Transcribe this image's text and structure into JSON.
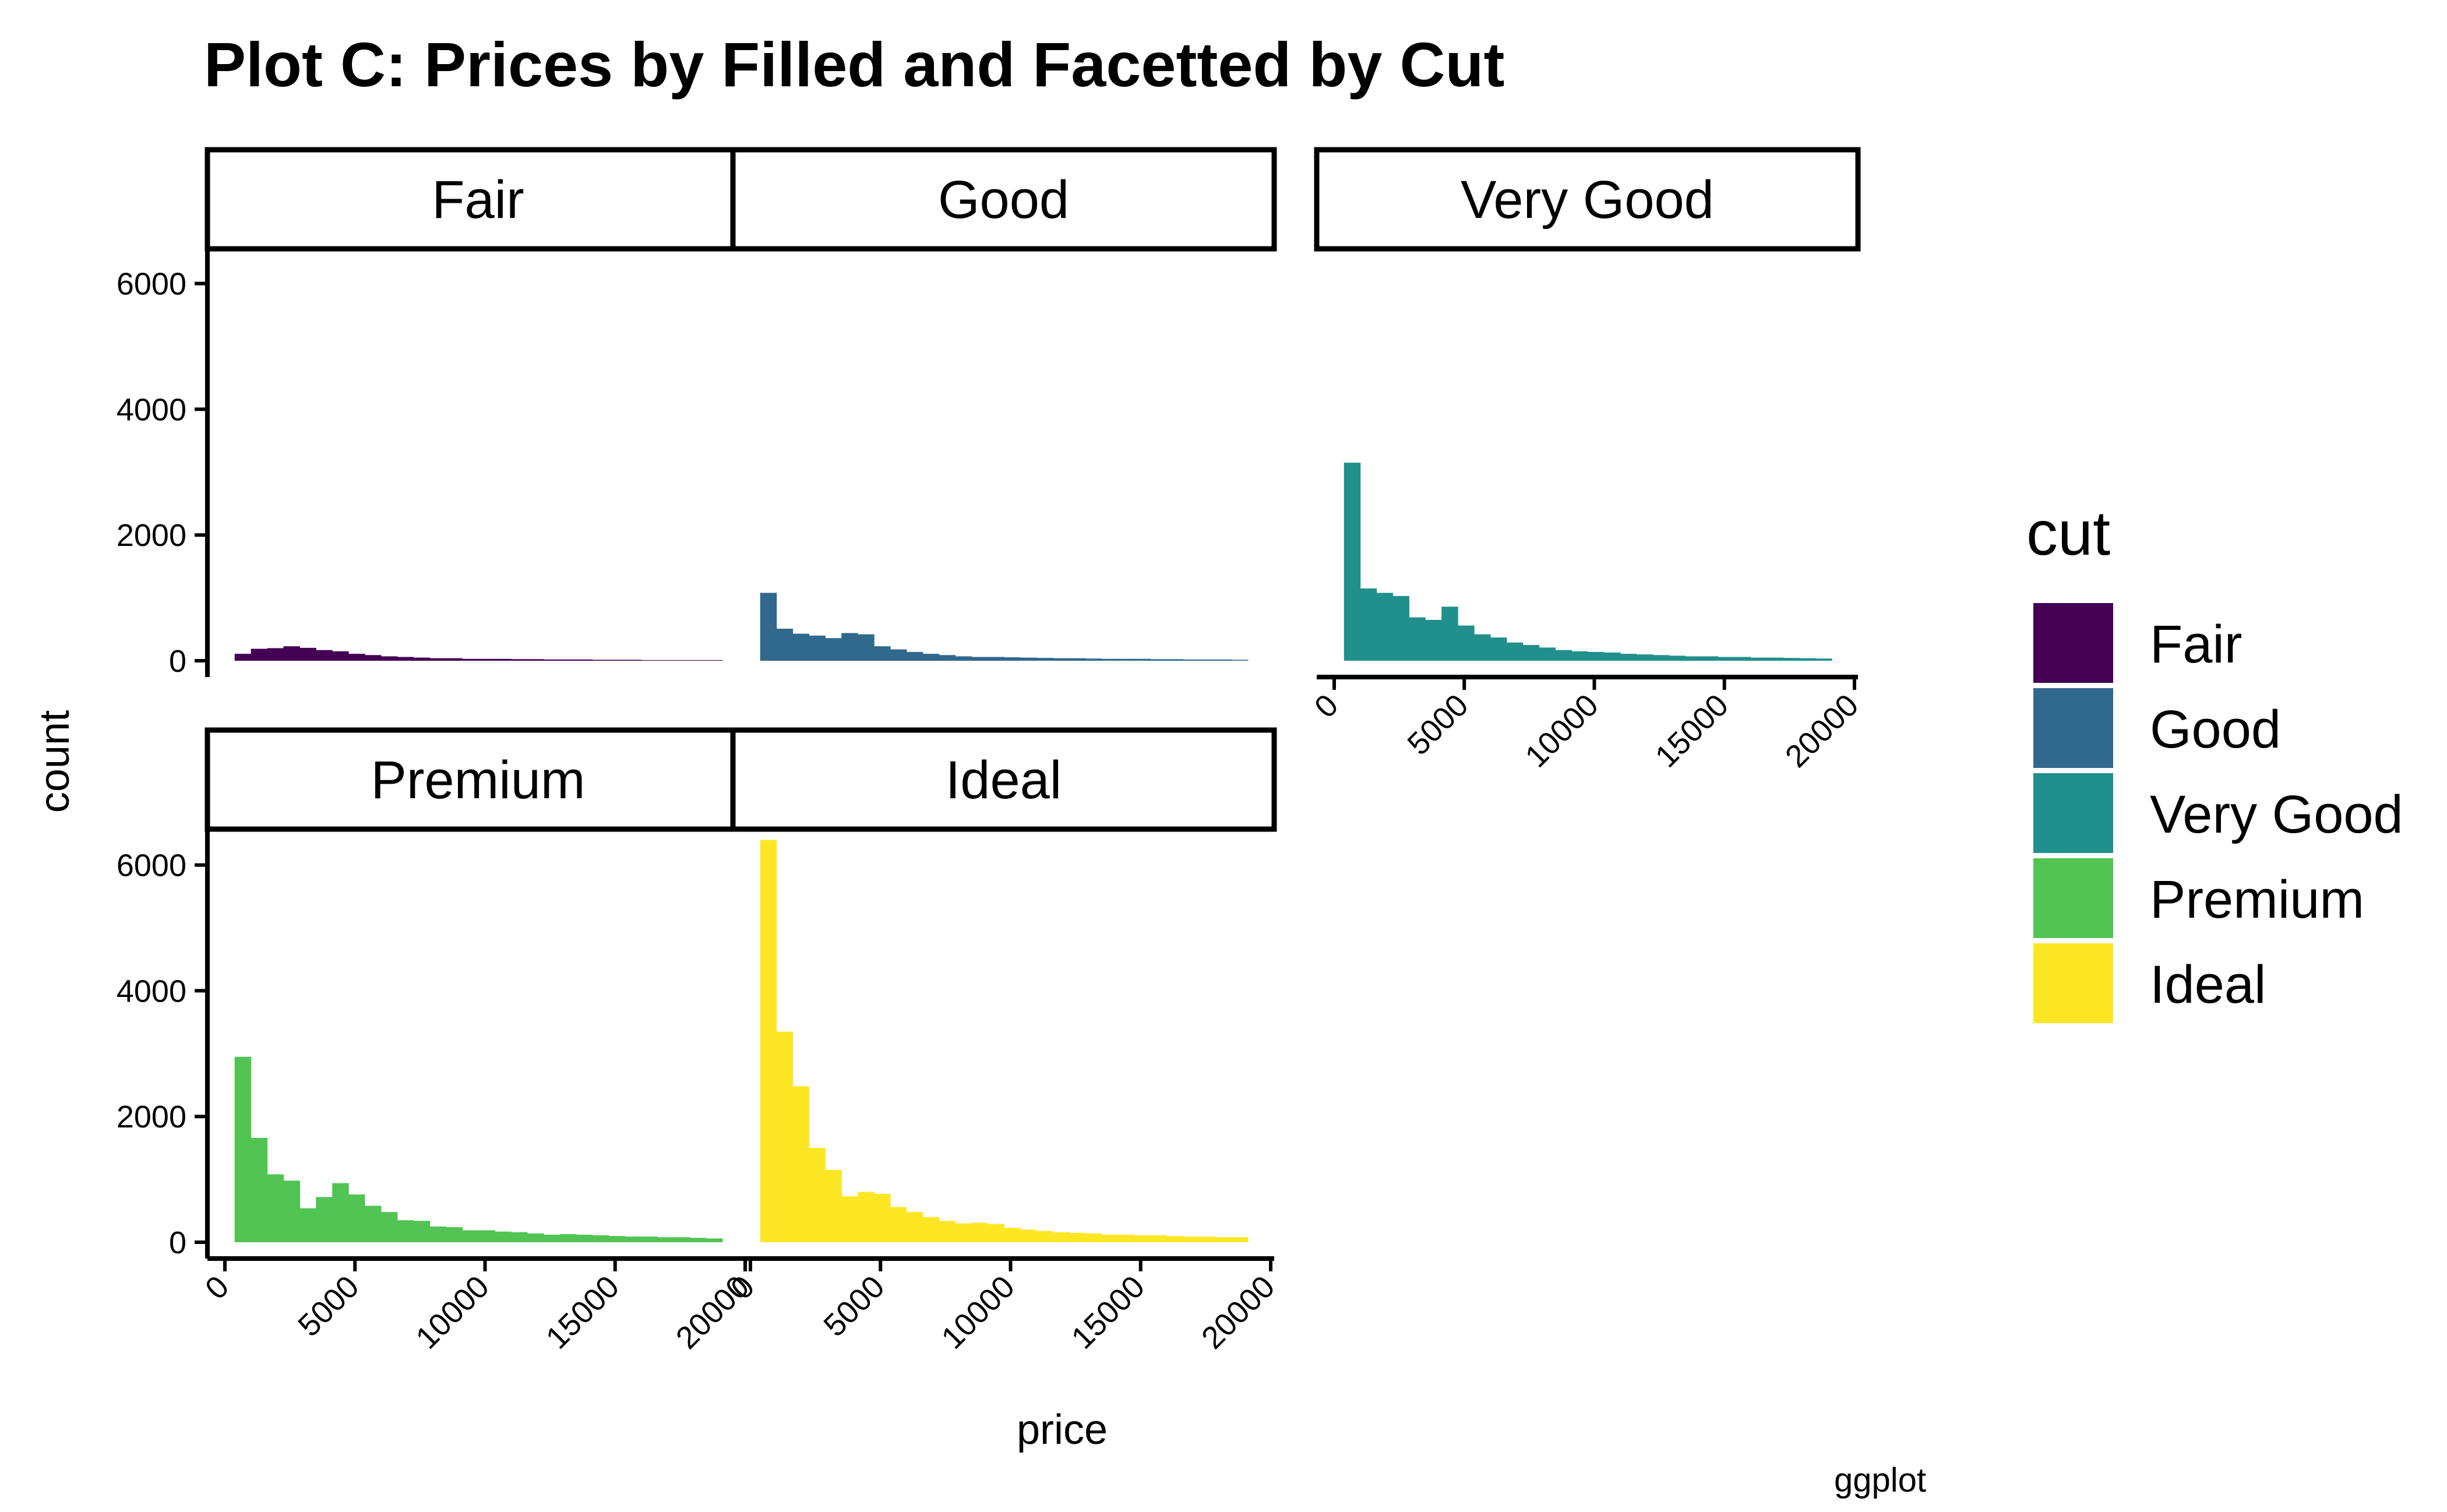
{
  "chart_data": {
    "type": "bar",
    "title": "Plot C: Prices by Filled and Facetted by Cut",
    "xlabel": "price",
    "ylabel": "count",
    "caption": "ggplot",
    "legend_title": "cut",
    "legend_position": "right",
    "xlim": [
      0,
      20000
    ],
    "ylim": [
      0,
      6500
    ],
    "x_ticks": [
      0,
      5000,
      10000,
      15000,
      20000
    ],
    "y_ticks": [
      0,
      2000,
      4000,
      6000
    ],
    "x_tick_labels": [
      "0",
      "5000",
      "10000",
      "15000",
      "20000"
    ],
    "y_tick_labels": [
      "0",
      "2000",
      "4000",
      "6000"
    ],
    "grid": false,
    "bin_starts": [
      375,
      1000,
      1625,
      2250,
      2875,
      3500,
      4125,
      4750,
      5375,
      6000,
      6625,
      7250,
      7875,
      8500,
      9125,
      9750,
      10375,
      11000,
      11625,
      12250,
      12875,
      13500,
      14125,
      14750,
      15375,
      16000,
      16625,
      17250,
      17875,
      18500
    ],
    "bin_width": 625,
    "series": [
      {
        "name": "Fair",
        "color": "#440154",
        "values": [
          110,
          190,
          200,
          230,
          205,
          170,
          150,
          110,
          90,
          70,
          60,
          50,
          40,
          40,
          30,
          30,
          30,
          25,
          25,
          20,
          20,
          20,
          15,
          15,
          15,
          10,
          10,
          10,
          10,
          10
        ]
      },
      {
        "name": "Good",
        "color": "#31688E",
        "values": [
          1080,
          510,
          430,
          400,
          360,
          440,
          420,
          230,
          180,
          140,
          110,
          90,
          70,
          60,
          60,
          55,
          50,
          45,
          40,
          40,
          35,
          30,
          30,
          30,
          25,
          25,
          20,
          20,
          20,
          15
        ]
      },
      {
        "name": "Very Good",
        "color": "#21908C",
        "values": [
          3150,
          1150,
          1080,
          1030,
          690,
          650,
          860,
          560,
          420,
          370,
          290,
          250,
          210,
          170,
          150,
          140,
          130,
          110,
          100,
          90,
          80,
          70,
          70,
          60,
          60,
          50,
          50,
          45,
          40,
          35
        ]
      },
      {
        "name": "Premium",
        "color": "#51C453",
        "values": [
          2950,
          1660,
          1080,
          980,
          540,
          720,
          940,
          760,
          580,
          480,
          350,
          340,
          250,
          240,
          190,
          190,
          170,
          160,
          140,
          120,
          130,
          120,
          110,
          100,
          90,
          90,
          80,
          80,
          70,
          60
        ]
      },
      {
        "name": "Ideal",
        "color": "#FDE725",
        "values": [
          6400,
          3350,
          2480,
          1500,
          1150,
          730,
          800,
          770,
          560,
          480,
          400,
          340,
          300,
          310,
          290,
          230,
          200,
          180,
          160,
          150,
          140,
          120,
          120,
          110,
          110,
          100,
          90,
          90,
          80,
          80
        ]
      }
    ]
  }
}
